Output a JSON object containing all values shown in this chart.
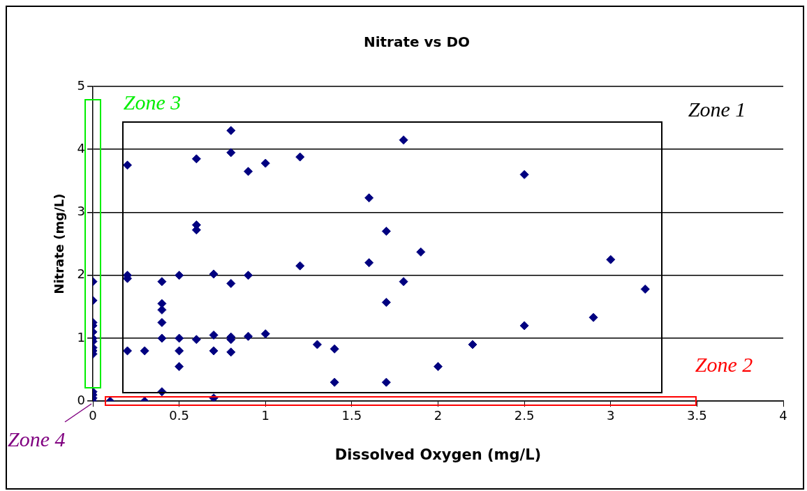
{
  "chart_data": {
    "type": "scatter",
    "title": "Nitrate vs DO",
    "xlabel": "Dissolved Oxygen (mg/L)",
    "ylabel": "Nitrate (mg/L)",
    "x": [
      0,
      0,
      0,
      0,
      0,
      0,
      0,
      0,
      0,
      0,
      0,
      0,
      0,
      0,
      0.1,
      0.2,
      0.2,
      0.2,
      0.2,
      0.3,
      0.3,
      0.4,
      0.4,
      0.4,
      0.4,
      0.4,
      0.4,
      0.5,
      0.5,
      0.5,
      0.5,
      0.6,
      0.6,
      0.6,
      0.6,
      0.7,
      0.7,
      0.7,
      0.7,
      0.8,
      0.8,
      0.8,
      0.8,
      0.8,
      0.8,
      0.9,
      0.9,
      0.9,
      1.0,
      1.0,
      1.2,
      1.2,
      1.3,
      1.4,
      1.4,
      1.6,
      1.6,
      1.7,
      1.7,
      1.7,
      1.8,
      1.8,
      1.9,
      2.0,
      2.2,
      2.5,
      2.5,
      2.9,
      3.0,
      3.2
    ],
    "series": [
      {
        "color": "#000080",
        "values": [
          1.9,
          1.6,
          1.25,
          1.2,
          1.1,
          1.0,
          0.95,
          0.85,
          0.8,
          0.75,
          0.15,
          0.1,
          0.05,
          0,
          0,
          3.75,
          2.0,
          1.95,
          0.8,
          0.8,
          0,
          1.9,
          1.55,
          1.45,
          1.25,
          1.0,
          0.15,
          2.0,
          1.0,
          0.8,
          0.55,
          3.85,
          2.8,
          2.72,
          0.98,
          2.02,
          1.05,
          0.8,
          0.05,
          4.3,
          3.95,
          1.87,
          1.02,
          0.98,
          0.78,
          3.65,
          2.0,
          1.03,
          3.78,
          1.07,
          3.88,
          2.15,
          0.9,
          0.83,
          0.3,
          3.23,
          2.2,
          2.7,
          1.57,
          0.3,
          4.15,
          1.9,
          2.37,
          0.55,
          0.9,
          3.6,
          1.2,
          1.33,
          2.25,
          1.78
        ]
      }
    ],
    "xlim": [
      0,
      4
    ],
    "xticks": [
      0,
      0.5,
      1,
      1.5,
      2,
      2.5,
      3,
      3.5,
      4
    ],
    "ylim": [
      0,
      5
    ],
    "yticks": [
      0,
      1,
      2,
      3,
      4,
      5
    ],
    "grid": "y",
    "legend": false,
    "marker": "diamond",
    "annotations": [
      "Zone 1",
      "Zone 2",
      "Zone 3",
      "Zone 4"
    ]
  }
}
